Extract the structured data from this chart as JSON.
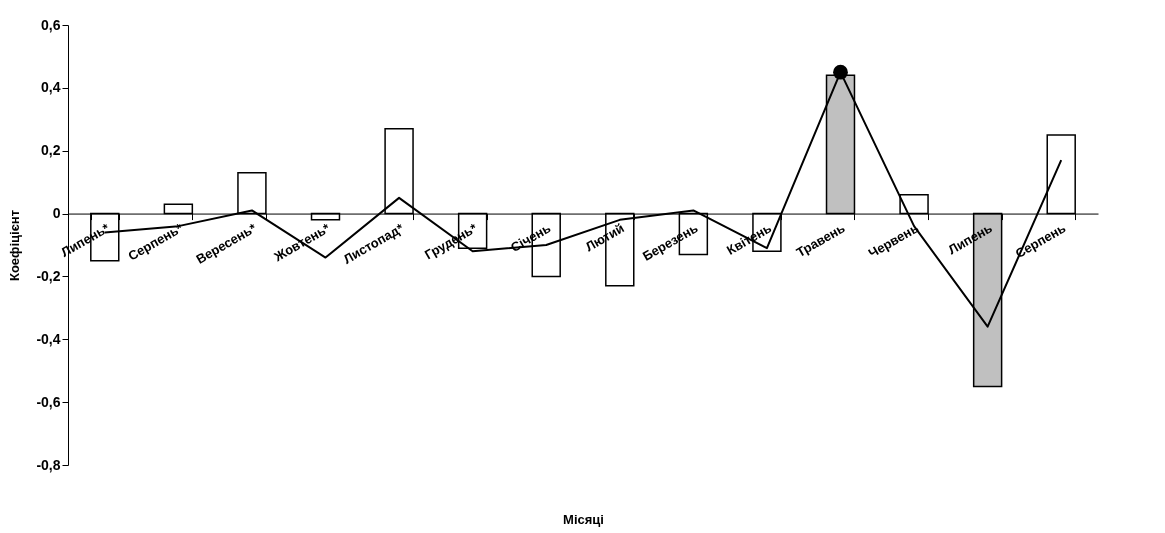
{
  "chart_data": {
    "type": "bar",
    "xlabel": "Місяці",
    "ylabel": "Коефіцієнт",
    "categories": [
      "Липень*",
      "Серпень*",
      "Вересень*",
      "Жовтень*",
      "Листопад*",
      "Грудень*",
      "Січень",
      "Лютий",
      "Березень",
      "Квітень",
      "Травень",
      "Червень",
      "Липень",
      "Серпень"
    ],
    "series": [
      {
        "values": [
          -0.15,
          0.03,
          0.13,
          -0.02,
          0.27,
          -0.11,
          -0.2,
          -0.23,
          -0.13,
          -0.12,
          0.44,
          0.06,
          -0.55,
          0.25
        ],
        "colors": [
          "#ffffff",
          "#ffffff",
          "#ffffff",
          "#ffffff",
          "#ffffff",
          "#ffffff",
          "#ffffff",
          "#ffffff",
          "#ffffff",
          "#ffffff",
          "#c0c0c0",
          "#ffffff",
          "#c0c0c0",
          "#ffffff"
        ]
      },
      {
        "type": "line",
        "color": "#000000",
        "values": [
          -0.06,
          -0.04,
          0.01,
          -0.14,
          0.05,
          -0.12,
          -0.1,
          -0.02,
          0.01,
          -0.11,
          0.45,
          -0.04,
          -0.36,
          0.17
        ]
      },
      {
        "type": "scatter",
        "color": "#000000",
        "marker": "circle",
        "x": [
          "Травень"
        ],
        "values": [
          0.45
        ]
      }
    ],
    "ylim": [
      -0.8,
      0.6
    ],
    "yticks": [
      {
        "value": -0.8,
        "label": "-0,8"
      },
      {
        "value": -0.6,
        "label": "-0,6"
      },
      {
        "value": -0.4,
        "label": "-0,4"
      },
      {
        "value": -0.2,
        "label": "-0,2"
      },
      {
        "value": 0,
        "label": "0"
      },
      {
        "value": 0.2,
        "label": "0,2"
      },
      {
        "value": 0.4,
        "label": "0,4"
      },
      {
        "value": 0.6,
        "label": "0,6"
      }
    ],
    "grid": false
  }
}
